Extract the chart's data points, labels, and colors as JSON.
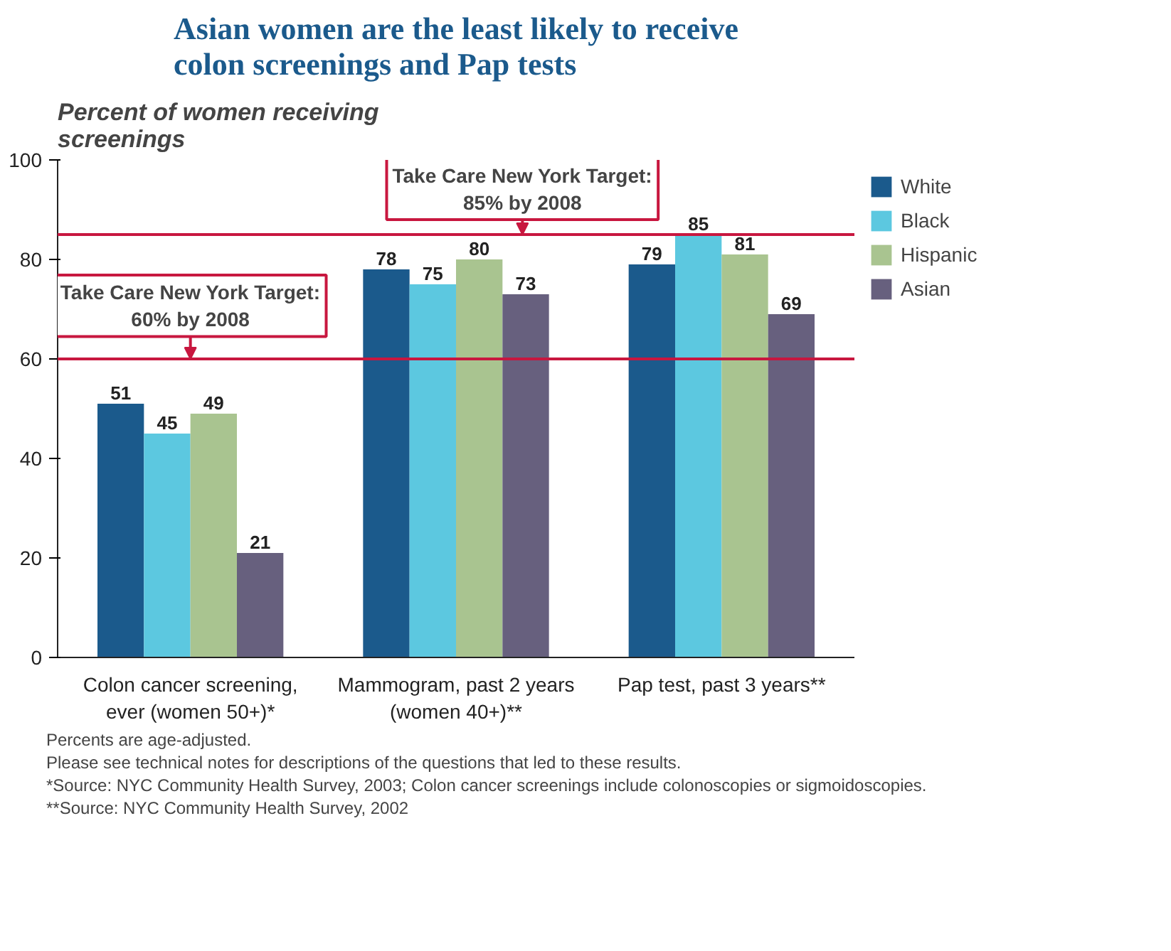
{
  "chart_data": {
    "type": "bar",
    "title": "Asian women are the least likely to receive colon screenings and Pap tests",
    "ylabel": "Percent of women receiving screenings",
    "categories": [
      "Colon cancer screening, ever (women 50+)*",
      "Mammogram, past 2 years (women 40+)**",
      "Pap test, past 3 years**"
    ],
    "series": [
      {
        "name": "White",
        "color": "#1b5a8c",
        "values": [
          51,
          78,
          79
        ]
      },
      {
        "name": "Black",
        "color": "#5cc8e0",
        "values": [
          45,
          75,
          85
        ]
      },
      {
        "name": "Hispanic",
        "color": "#a9c490",
        "values": [
          49,
          80,
          81
        ]
      },
      {
        "name": "Asian",
        "color": "#67607e",
        "values": [
          21,
          73,
          69
        ]
      }
    ],
    "ylim": [
      0,
      100
    ],
    "yticks": [
      0,
      20,
      40,
      60,
      80,
      100
    ],
    "data_labels": true,
    "grid": false,
    "legend": "top right",
    "ref_lines": [
      {
        "axis": "y",
        "value": 60,
        "label": "Take Care New York Target: 60% by 2008",
        "color": "#c8173f"
      },
      {
        "axis": "y",
        "value": 85,
        "label": "Take Care New York Target: 85% by 2008",
        "color": "#c8173f"
      }
    ],
    "annotations": [
      "Percents are age-adjusted.",
      "Please see technical notes for descriptions of the questions that led to these results.",
      "*Source: NYC Community Health Survey, 2003; Colon cancer screenings include colonoscopies or sigmoidoscopies.",
      "**Source: NYC Community Health Survey, 2002"
    ]
  }
}
